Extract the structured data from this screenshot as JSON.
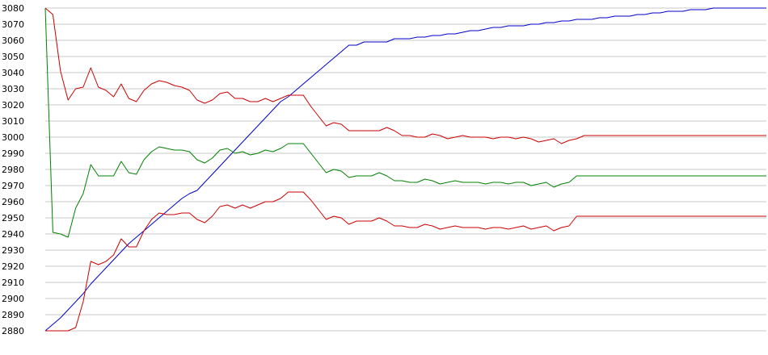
{
  "chart_data": {
    "type": "line",
    "title": "",
    "xlabel": "",
    "ylabel": "",
    "ylim": [
      2880,
      3080
    ],
    "yticks": [
      "2880",
      "2890",
      "2900",
      "2910",
      "2920",
      "2930",
      "2940",
      "2950",
      "2960",
      "2970",
      "2980",
      "2990",
      "3000",
      "3010",
      "3020",
      "3030",
      "3040",
      "3050",
      "3060",
      "3070",
      "3080"
    ],
    "grid": "horizontal",
    "legend": "none",
    "x": [
      1,
      2,
      3,
      4,
      5,
      6,
      7,
      8,
      9,
      10,
      11,
      12,
      13,
      14,
      15,
      16,
      17,
      18,
      19,
      20,
      21,
      22,
      23,
      24,
      25,
      26,
      27,
      28,
      29,
      30,
      31,
      32,
      33,
      34,
      35,
      36,
      37,
      38,
      39,
      40,
      41,
      42,
      43,
      44,
      45,
      46,
      47,
      48,
      49,
      50,
      51,
      52,
      53,
      54,
      55,
      56,
      57,
      58,
      59,
      60,
      61,
      62,
      63,
      64,
      65,
      66,
      67,
      68,
      69,
      70,
      71,
      72,
      73,
      74,
      75,
      76,
      77,
      78,
      79,
      80,
      81,
      82,
      83,
      84,
      85,
      86,
      87,
      88,
      89,
      90,
      91,
      92,
      93,
      94,
      95,
      96
    ],
    "series": [
      {
        "color": "#0000cc",
        "values": [
          2880,
          2884,
          2888,
          2893,
          2898,
          2903,
          2909,
          2914,
          2919,
          2924,
          2929,
          2934,
          2938,
          2942,
          2946,
          2950,
          2954,
          2958,
          2962,
          2965,
          2967,
          2972,
          2977,
          2982,
          2987,
          2992,
          2997,
          3002,
          3007,
          3012,
          3017,
          3022,
          3025,
          3029,
          3033,
          3037,
          3041,
          3045,
          3049,
          3053,
          3057,
          3057,
          3059,
          3059,
          3059,
          3059,
          3061,
          3061,
          3061,
          3062,
          3062,
          3063,
          3063,
          3064,
          3064,
          3065,
          3066,
          3066,
          3067,
          3068,
          3068,
          3069,
          3069,
          3069,
          3070,
          3070,
          3071,
          3071,
          3072,
          3072,
          3073,
          3073,
          3073,
          3074,
          3074,
          3075,
          3075,
          3075,
          3076,
          3076,
          3077,
          3077,
          3078,
          3078,
          3078,
          3079,
          3079,
          3079,
          3080,
          3080,
          3080,
          3080,
          3080,
          3080,
          3080,
          3080
        ]
      },
      {
        "color": "#cc0000",
        "values": [
          3080,
          3076,
          3041,
          3023,
          3030,
          3031,
          3043,
          3031,
          3029,
          3025,
          3033,
          3024,
          3022,
          3029,
          3033,
          3035,
          3034,
          3032,
          3031,
          3029,
          3023,
          3021,
          3023,
          3027,
          3028,
          3024,
          3024,
          3022,
          3022,
          3024,
          3022,
          3024,
          3026,
          3026,
          3026,
          3019,
          3013,
          3007,
          3009,
          3008,
          3004,
          3004,
          3004,
          3004,
          3004,
          3006,
          3004,
          3001,
          3001,
          3000,
          3000,
          3002,
          3001,
          2999,
          3000,
          3001,
          3000,
          3000,
          3000,
          2999,
          3000,
          3000,
          2999,
          3000,
          2999,
          2997,
          2998,
          2999,
          2996,
          2998,
          2999,
          3001,
          3001,
          3001,
          3001,
          3001,
          3001,
          3001,
          3001,
          3001,
          3001,
          3001,
          3001,
          3001,
          3001,
          3001,
          3001,
          3001,
          3001,
          3001,
          3001,
          3001,
          3001,
          3001,
          3001,
          3001
        ]
      },
      {
        "color": "#008000",
        "values": [
          3080,
          2941,
          2940,
          2938,
          2956,
          2965,
          2983,
          2976,
          2976,
          2976,
          2985,
          2978,
          2977,
          2986,
          2991,
          2994,
          2993,
          2992,
          2992,
          2991,
          2986,
          2984,
          2987,
          2992,
          2993,
          2990,
          2991,
          2989,
          2990,
          2992,
          2991,
          2993,
          2996,
          2996,
          2996,
          2990,
          2984,
          2978,
          2980,
          2979,
          2975,
          2976,
          2976,
          2976,
          2978,
          2976,
          2973,
          2973,
          2972,
          2972,
          2974,
          2973,
          2971,
          2972,
          2973,
          2972,
          2972,
          2972,
          2971,
          2972,
          2972,
          2971,
          2972,
          2972,
          2970,
          2971,
          2972,
          2969,
          2971,
          2972,
          2976,
          2976,
          2976,
          2976,
          2976,
          2976,
          2976,
          2976,
          2976,
          2976,
          2976,
          2976,
          2976,
          2976,
          2976,
          2976,
          2976,
          2976,
          2976,
          2976,
          2976,
          2976,
          2976,
          2976,
          2976,
          2976
        ]
      },
      {
        "color": "#cc0000",
        "values": [
          2880,
          2880,
          2880,
          2880,
          2882,
          2898,
          2923,
          2921,
          2923,
          2927,
          2937,
          2932,
          2932,
          2942,
          2949,
          2953,
          2952,
          2952,
          2953,
          2953,
          2949,
          2947,
          2951,
          2957,
          2958,
          2956,
          2958,
          2956,
          2958,
          2960,
          2960,
          2962,
          2966,
          2966,
          2966,
          2961,
          2955,
          2949,
          2951,
          2950,
          2946,
          2948,
          2948,
          2948,
          2950,
          2948,
          2945,
          2945,
          2944,
          2944,
          2946,
          2945,
          2943,
          2944,
          2945,
          2944,
          2944,
          2944,
          2943,
          2944,
          2944,
          2943,
          2944,
          2945,
          2943,
          2944,
          2945,
          2942,
          2944,
          2945,
          2951,
          2951,
          2951,
          2951,
          2951,
          2951,
          2951,
          2951,
          2951,
          2951,
          2951,
          2951,
          2951,
          2951,
          2951,
          2951,
          2951,
          2951,
          2951,
          2951,
          2951,
          2951,
          2951,
          2951,
          2951,
          2951
        ]
      }
    ]
  }
}
